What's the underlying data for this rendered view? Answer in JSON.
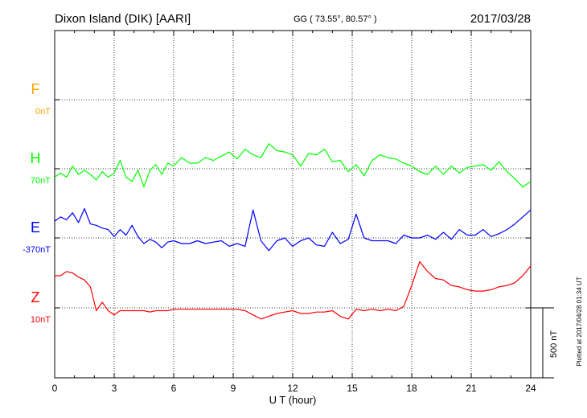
{
  "chart_data": {
    "type": "line",
    "header": {
      "station": "Dixon Island (DIK)  [AARI]",
      "coords": "GG ( 73.55°,  80.57° )",
      "date": "2017/03/28"
    },
    "xlabel": "U T (hour)",
    "xlim": [
      0,
      24
    ],
    "xticks": [
      0,
      3,
      6,
      9,
      12,
      15,
      18,
      21,
      24
    ],
    "scale_label": "500 nT",
    "plotted_note": "Plotted at 2017/04/28 01:34 UT",
    "colors": {
      "F": "#ffa500",
      "H": "#00ff00",
      "E": "#0000ff",
      "Z": "#ff0000"
    },
    "series": [
      {
        "name": "F",
        "offset_label": "0nT",
        "x": [],
        "y": []
      },
      {
        "name": "H",
        "offset_label": "70nT",
        "x": [
          0,
          0.3,
          0.6,
          0.9,
          1.2,
          1.5,
          1.8,
          2.1,
          2.4,
          2.7,
          3,
          3.3,
          3.6,
          3.9,
          4.2,
          4.5,
          4.8,
          5.1,
          5.4,
          5.7,
          6,
          6.4,
          6.8,
          7.2,
          7.6,
          8,
          8.4,
          8.8,
          9.2,
          9.6,
          10,
          10.4,
          10.8,
          11.2,
          11.6,
          12,
          12.4,
          12.8,
          13.2,
          13.6,
          14,
          14.4,
          14.8,
          15.2,
          15.6,
          16,
          16.4,
          16.8,
          17.2,
          17.6,
          18,
          18.4,
          18.8,
          19.2,
          19.6,
          20,
          20.4,
          20.8,
          21.2,
          21.6,
          22,
          22.4,
          22.8,
          23.2,
          23.6,
          24
        ],
        "y": [
          -60,
          -30,
          -60,
          20,
          -40,
          -10,
          -40,
          -80,
          -20,
          -60,
          -30,
          60,
          -60,
          -90,
          -10,
          -130,
          -10,
          30,
          -40,
          40,
          20,
          80,
          40,
          40,
          80,
          60,
          90,
          120,
          70,
          140,
          100,
          80,
          180,
          130,
          120,
          100,
          20,
          110,
          100,
          140,
          50,
          60,
          -20,
          30,
          -50,
          60,
          100,
          80,
          70,
          40,
          20,
          -20,
          -40,
          20,
          -40,
          20,
          -30,
          10,
          20,
          30,
          -10,
          50,
          -20,
          -70,
          -130,
          -90
        ]
      },
      {
        "name": "E",
        "offset_label": "-370nT",
        "x": [
          0,
          0.3,
          0.6,
          0.9,
          1.2,
          1.5,
          1.8,
          2.1,
          2.4,
          2.7,
          3,
          3.3,
          3.6,
          3.9,
          4.2,
          4.5,
          4.8,
          5.1,
          5.4,
          5.7,
          6,
          6.4,
          6.8,
          7.2,
          7.6,
          8,
          8.4,
          8.8,
          9.2,
          9.6,
          10,
          10.4,
          10.8,
          11.2,
          11.6,
          12,
          12.4,
          12.8,
          13.2,
          13.6,
          14,
          14.4,
          14.8,
          15.2,
          15.6,
          16,
          16.4,
          16.8,
          17.2,
          17.6,
          18,
          18.4,
          18.8,
          19.2,
          19.6,
          20,
          20.4,
          20.8,
          21.2,
          21.6,
          22,
          22.4,
          22.8,
          23.2,
          23.6,
          24
        ],
        "y": [
          120,
          150,
          130,
          180,
          110,
          210,
          100,
          90,
          70,
          60,
          10,
          60,
          20,
          90,
          10,
          -40,
          -10,
          -30,
          -70,
          -30,
          -20,
          -40,
          -40,
          -20,
          -40,
          -30,
          -20,
          -60,
          -40,
          -60,
          200,
          -20,
          -90,
          -20,
          0,
          -60,
          -20,
          0,
          -50,
          -60,
          40,
          -40,
          -10,
          170,
          0,
          -20,
          -20,
          -20,
          -40,
          20,
          0,
          0,
          20,
          -10,
          40,
          -10,
          60,
          20,
          20,
          60,
          10,
          30,
          60,
          100,
          150,
          200
        ]
      },
      {
        "name": "Z",
        "offset_label": "10nT",
        "x": [
          0,
          0.3,
          0.6,
          0.9,
          1.2,
          1.5,
          1.8,
          2.1,
          2.4,
          2.7,
          3,
          3.3,
          3.6,
          3.9,
          4.2,
          4.5,
          4.8,
          5.1,
          5.4,
          5.7,
          6,
          6.4,
          6.8,
          7.2,
          7.6,
          8,
          8.4,
          8.8,
          9.2,
          9.6,
          10,
          10.4,
          10.8,
          11.2,
          11.6,
          12,
          12.4,
          12.8,
          13.2,
          13.6,
          14,
          14.4,
          14.8,
          15.2,
          15.6,
          16,
          16.4,
          16.8,
          17.2,
          17.6,
          18,
          18.4,
          18.8,
          19.2,
          19.6,
          20,
          20.4,
          20.8,
          21.2,
          21.6,
          22,
          22.4,
          22.8,
          23.2,
          23.6,
          24
        ],
        "y": [
          230,
          230,
          260,
          250,
          220,
          200,
          150,
          -20,
          40,
          -20,
          -50,
          -20,
          -20,
          -20,
          -20,
          -20,
          -30,
          -20,
          -20,
          -20,
          -10,
          -10,
          -10,
          -10,
          -10,
          -10,
          -10,
          -10,
          -10,
          -20,
          -50,
          -80,
          -60,
          -40,
          -30,
          -20,
          -40,
          -40,
          -30,
          -30,
          -20,
          -60,
          -80,
          -10,
          -20,
          -10,
          -20,
          -10,
          -20,
          10,
          160,
          330,
          260,
          210,
          200,
          160,
          150,
          130,
          120,
          120,
          130,
          150,
          160,
          180,
          230,
          300
        ]
      }
    ]
  }
}
